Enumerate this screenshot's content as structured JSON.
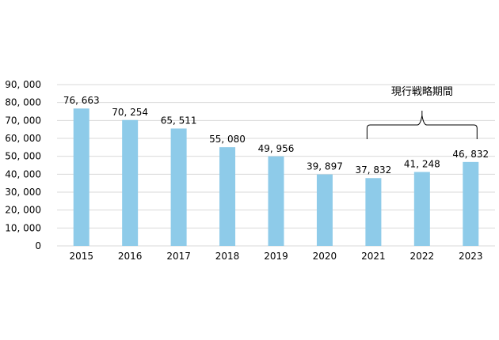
{
  "chart_data": {
    "type": "bar",
    "categories": [
      "2015",
      "2016",
      "2017",
      "2018",
      "2019",
      "2020",
      "2021",
      "2022",
      "2023"
    ],
    "values": [
      76663,
      70254,
      65511,
      55080,
      49956,
      39897,
      37832,
      41248,
      46832
    ],
    "data_labels": [
      "76, 663",
      "70, 254",
      "65, 511",
      "55, 080",
      "49, 956",
      "39, 897",
      "37, 832",
      "41, 248",
      "46, 832"
    ],
    "y_ticks": [
      "0",
      "10, 000",
      "20, 000",
      "30, 000",
      "40, 000",
      "50, 000",
      "60, 000",
      "70, 000",
      "80, 000",
      "90, 000"
    ],
    "ylim": [
      0,
      90000
    ],
    "grid": true,
    "bar_color": "#8ecbe9",
    "grid_color": "#d9d9d9",
    "annotation": {
      "text": "現行戦略期間",
      "span": [
        "2021",
        "2023"
      ]
    }
  }
}
